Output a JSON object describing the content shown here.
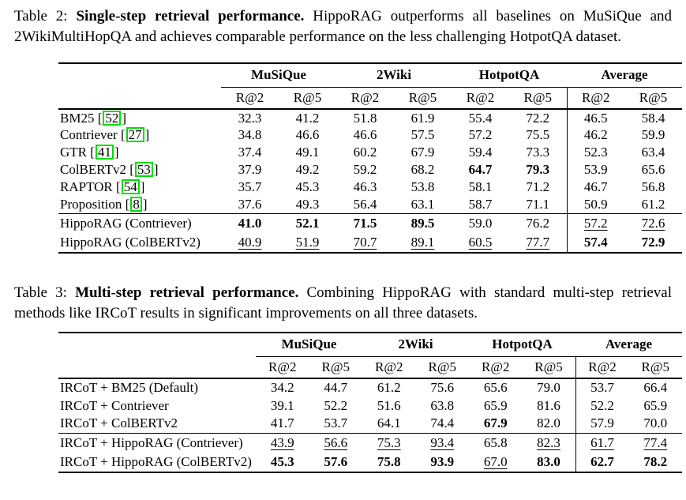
{
  "colors": {
    "citation_border": "#00dc00",
    "rule": "#000000",
    "background": "#ffffff",
    "text": "#000000"
  },
  "tables": [
    {
      "caption": {
        "label": "Table 2: ",
        "title": "Single-step retrieval performance.",
        "text": " HippoRAG outperforms all baselines on MuSiQue and 2WikiMultiHopQA and achieves comparable performance on the less challenging HotpotQA dataset."
      },
      "col_groups": [
        "MuSiQue",
        "2Wiki",
        "HotpotQA",
        "Average"
      ],
      "sub_headers": [
        "R@2",
        "R@5",
        "R@2",
        "R@5",
        "R@2",
        "R@5",
        "R@2",
        "R@5"
      ],
      "row_groups": [
        {
          "rows": [
            {
              "label": "BM25",
              "cite": "52",
              "values": [
                "32.3",
                "41.2",
                "51.8",
                "61.9",
                "55.4",
                "72.2",
                "46.5",
                "58.4"
              ],
              "styles": "pppppppp"
            },
            {
              "label": "Contriever",
              "cite": "27",
              "values": [
                "34.8",
                "46.6",
                "46.6",
                "57.5",
                "57.2",
                "75.5",
                "46.2",
                "59.9"
              ],
              "styles": "pppppppp"
            },
            {
              "label": "GTR",
              "cite": "41",
              "values": [
                "37.4",
                "49.1",
                "60.2",
                "67.9",
                "59.4",
                "73.3",
                "52.3",
                "63.4"
              ],
              "styles": "pppppppp"
            },
            {
              "label": "ColBERTv2",
              "cite": "53",
              "values": [
                "37.9",
                "49.2",
                "59.2",
                "68.2",
                "64.7",
                "79.3",
                "53.9",
                "65.6"
              ],
              "styles": "ppppbbpp"
            },
            {
              "label": "RAPTOR",
              "cite": "54",
              "values": [
                "35.7",
                "45.3",
                "46.3",
                "53.8",
                "58.1",
                "71.2",
                "46.7",
                "56.8"
              ],
              "styles": "pppppppp"
            },
            {
              "label": "Proposition",
              "cite": "8",
              "values": [
                "37.6",
                "49.3",
                "56.4",
                "63.1",
                "58.7",
                "71.1",
                "50.9",
                "61.2"
              ],
              "styles": "pppppppp"
            }
          ]
        },
        {
          "rows": [
            {
              "label": "HippoRAG (Contriever)",
              "values": [
                "41.0",
                "52.1",
                "71.5",
                "89.5",
                "59.0",
                "76.2",
                "57.2",
                "72.6"
              ],
              "styles": "bbbbppuu"
            },
            {
              "label": "HippoRAG (ColBERTv2)",
              "values": [
                "40.9",
                "51.9",
                "70.7",
                "89.1",
                "60.5",
                "77.7",
                "57.4",
                "72.9"
              ],
              "styles": "uuuuuubb"
            }
          ]
        }
      ]
    },
    {
      "caption": {
        "label": "Table 3: ",
        "title": "Multi-step retrieval performance.",
        "text": " Combining HippoRAG with standard multi-step retrieval methods like IRCoT results in significant improvements on all three datasets."
      },
      "col_groups": [
        "MuSiQue",
        "2Wiki",
        "HotpotQA",
        "Average"
      ],
      "sub_headers": [
        "R@2",
        "R@5",
        "R@2",
        "R@5",
        "R@2",
        "R@5",
        "R@2",
        "R@5"
      ],
      "row_groups": [
        {
          "rows": [
            {
              "label": "IRCoT + BM25 (Default)",
              "values": [
                "34.2",
                "44.7",
                "61.2",
                "75.6",
                "65.6",
                "79.0",
                "53.7",
                "66.4"
              ],
              "styles": "pppppppp"
            },
            {
              "label": "IRCoT + Contriever",
              "values": [
                "39.1",
                "52.2",
                "51.6",
                "63.8",
                "65.9",
                "81.6",
                "52.2",
                "65.9"
              ],
              "styles": "pppppppp"
            },
            {
              "label": "IRCoT + ColBERTv2",
              "values": [
                "41.7",
                "53.7",
                "64.1",
                "74.4",
                "67.9",
                "82.0",
                "57.9",
                "70.0"
              ],
              "styles": "ppppbppp"
            }
          ]
        },
        {
          "rows": [
            {
              "label": "IRCoT + HippoRAG (Contriever)",
              "values": [
                "43.9",
                "56.6",
                "75.3",
                "93.4",
                "65.8",
                "82.3",
                "61.7",
                "77.4"
              ],
              "styles": "uuuupuuu"
            },
            {
              "label": "IRCoT + HippoRAG (ColBERTv2)",
              "values": [
                "45.3",
                "57.6",
                "75.8",
                "93.9",
                "67.0",
                "83.0",
                "62.7",
                "78.2"
              ],
              "styles": "bbbbubbb"
            }
          ]
        }
      ]
    }
  ]
}
